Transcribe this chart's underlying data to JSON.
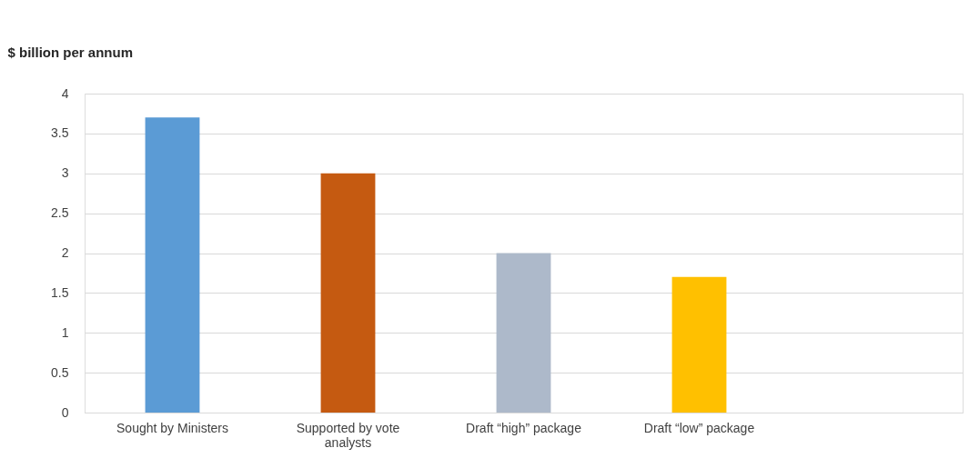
{
  "chart_data": {
    "type": "bar",
    "ylabel": "$ billion per annum",
    "categories": [
      "Sought by Ministers",
      "Supported by vote analysts",
      "Draft “high” package",
      "Draft “low” package",
      null
    ],
    "values": [
      3.7,
      3.0,
      2.0,
      1.7,
      null
    ],
    "colors": [
      "#5b9bd5",
      "#c55a11",
      "#adb9ca",
      "#ffc000",
      "#808080"
    ],
    "ylim": [
      0,
      4
    ],
    "yticks": [
      0,
      0.5,
      1,
      1.5,
      2,
      2.5,
      3,
      3.5,
      4
    ],
    "grid": "y"
  }
}
